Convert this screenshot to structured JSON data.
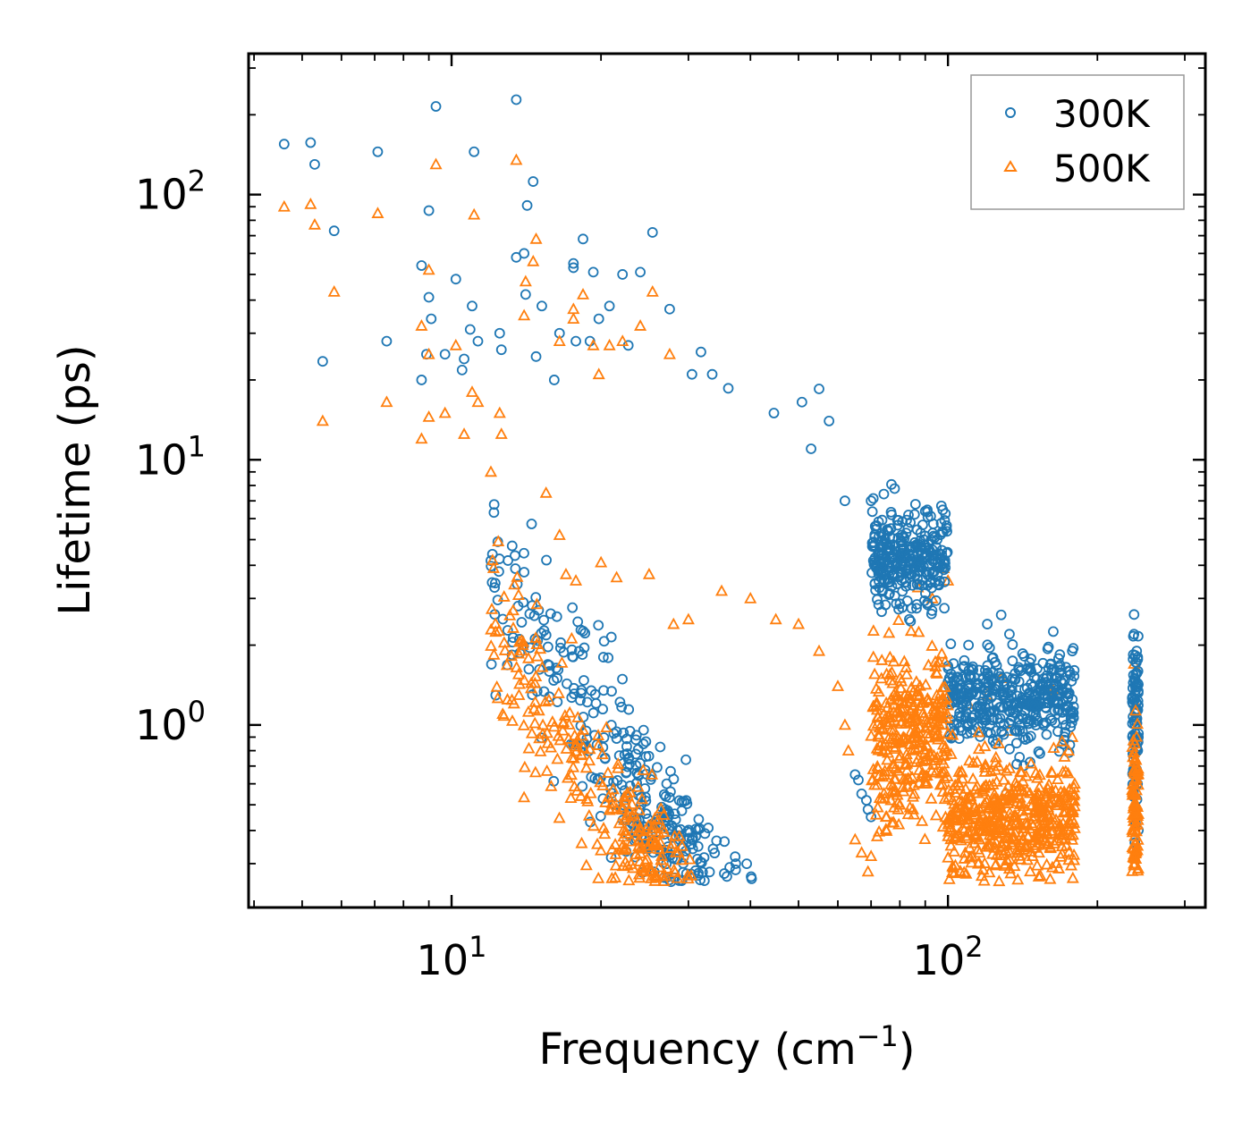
{
  "chart_data": {
    "type": "scatter",
    "xlabel": "Frequency (cm",
    "xlabel_sup": "−1",
    "xlabel_end": ")",
    "ylabel": "Lifetime (ps)",
    "xscale": "log",
    "yscale": "log",
    "xlim": [
      3.9,
      330
    ],
    "ylim": [
      0.205,
      340
    ],
    "x_ticks": [
      {
        "base": "10",
        "exp": "1",
        "value": 10
      },
      {
        "base": "10",
        "exp": "2",
        "value": 100
      }
    ],
    "y_ticks": [
      {
        "base": "10",
        "exp": "0",
        "value": 1
      },
      {
        "base": "10",
        "exp": "1",
        "value": 10
      },
      {
        "base": "10",
        "exp": "2",
        "value": 100
      }
    ],
    "legend_position": "top-right",
    "series": [
      {
        "name": "300K",
        "marker": "circle",
        "color": "#1f77b4",
        "points": [
          [
            4.6,
            155
          ],
          [
            5.2,
            157
          ],
          [
            5.3,
            130
          ],
          [
            5.8,
            73
          ],
          [
            5.5,
            23.5
          ],
          [
            7.1,
            145
          ],
          [
            7.4,
            28
          ],
          [
            8.7,
            54
          ],
          [
            9.0,
            87
          ],
          [
            9.3,
            215
          ],
          [
            9.0,
            41
          ],
          [
            9.1,
            34
          ],
          [
            8.9,
            25
          ],
          [
            9.7,
            25
          ],
          [
            10.2,
            48
          ],
          [
            10.5,
            21.8
          ],
          [
            11.1,
            145
          ],
          [
            11.0,
            38
          ],
          [
            10.9,
            31
          ],
          [
            11.3,
            28
          ],
          [
            8.7,
            20
          ],
          [
            10.6,
            24
          ],
          [
            13.5,
            228
          ],
          [
            13.5,
            58
          ],
          [
            14.2,
            91
          ],
          [
            14.6,
            112
          ],
          [
            14.0,
            60
          ],
          [
            12.5,
            30
          ],
          [
            12.6,
            26
          ],
          [
            14.1,
            42
          ],
          [
            14.8,
            24.5
          ],
          [
            15.2,
            38
          ],
          [
            16.5,
            30
          ],
          [
            17.6,
            55
          ],
          [
            17.6,
            53
          ],
          [
            18.4,
            68
          ],
          [
            19.3,
            51
          ],
          [
            19.8,
            34
          ],
          [
            20.8,
            38
          ],
          [
            22.1,
            50
          ],
          [
            24.0,
            51
          ],
          [
            25.4,
            72
          ],
          [
            27.5,
            37
          ],
          [
            16.1,
            20
          ],
          [
            17.8,
            28
          ],
          [
            19.0,
            28
          ],
          [
            22.7,
            27
          ],
          [
            31.8,
            25.5
          ],
          [
            30.5,
            21
          ],
          [
            33.5,
            21
          ],
          [
            36.1,
            18.6
          ],
          [
            44.6,
            15
          ],
          [
            50.8,
            16.5
          ],
          [
            55.0,
            18.5
          ],
          [
            57.6,
            14
          ],
          [
            53.0,
            11
          ],
          [
            62.0,
            7
          ],
          [
            70.0,
            7
          ],
          [
            77.0,
            6.2
          ],
          [
            84.0,
            5.8
          ],
          [
            90.0,
            6.4
          ],
          [
            97.0,
            6.7
          ],
          [
            65.0,
            0.65
          ],
          [
            67.0,
            0.55
          ],
          [
            69.0,
            0.48
          ],
          [
            70.0,
            0.45
          ],
          [
            68.5,
            0.52
          ],
          [
            66.0,
            0.62
          ],
          [
            110.0,
            2.0
          ],
          [
            120.0,
            2.4
          ],
          [
            128.0,
            2.6
          ],
          [
            133.0,
            2.2
          ],
          [
            140.0,
            1.6
          ],
          [
            163.0,
            2.25
          ],
          [
            178.0,
            1.9
          ],
          [
            175.0,
            1.6
          ],
          [
            118.0,
            1.1
          ],
          [
            150.0,
            1.3
          ],
          [
            237.0,
            2.2
          ],
          [
            240.0,
            1.9
          ],
          [
            238.0,
            1.5
          ],
          [
            236.0,
            1.2
          ],
          [
            239.0,
            0.9
          ],
          [
            241.0,
            0.6
          ],
          [
            238.0,
            0.36
          ],
          [
            240.0,
            0.45
          ],
          [
            131.0,
            0.55
          ],
          [
            158.0,
            0.92
          ],
          [
            103.0,
            0.95
          ]
        ]
      },
      {
        "name": "500K",
        "marker": "triangle",
        "color": "#ff7f0e",
        "points": [
          [
            4.6,
            90
          ],
          [
            5.2,
            92
          ],
          [
            5.3,
            77
          ],
          [
            5.8,
            43
          ],
          [
            5.5,
            14
          ],
          [
            7.1,
            85
          ],
          [
            7.4,
            16.5
          ],
          [
            9.3,
            130
          ],
          [
            9.0,
            52
          ],
          [
            9.0,
            25
          ],
          [
            8.7,
            32
          ],
          [
            8.7,
            12
          ],
          [
            9.7,
            15
          ],
          [
            10.2,
            27
          ],
          [
            9.0,
            14.5
          ],
          [
            11.1,
            84
          ],
          [
            11.0,
            18
          ],
          [
            10.6,
            12.5
          ],
          [
            11.3,
            16.5
          ],
          [
            13.5,
            135
          ],
          [
            14.6,
            56
          ],
          [
            14.8,
            68
          ],
          [
            14.0,
            35
          ],
          [
            14.1,
            47
          ],
          [
            12.5,
            15
          ],
          [
            12.6,
            12.5
          ],
          [
            12.0,
            9
          ],
          [
            16.5,
            28
          ],
          [
            17.6,
            37
          ],
          [
            17.6,
            34
          ],
          [
            18.4,
            42
          ],
          [
            19.3,
            27
          ],
          [
            19.8,
            21
          ],
          [
            20.8,
            27
          ],
          [
            22.1,
            28
          ],
          [
            24.0,
            32
          ],
          [
            25.4,
            43
          ],
          [
            27.5,
            25
          ],
          [
            15.5,
            7.5
          ],
          [
            16.5,
            5.2
          ],
          [
            17.0,
            3.7
          ],
          [
            17.8,
            3.5
          ],
          [
            20.0,
            4.1
          ],
          [
            21.5,
            3.6
          ],
          [
            25.0,
            3.7
          ],
          [
            28.0,
            2.4
          ],
          [
            30.0,
            2.5
          ],
          [
            35.0,
            3.2
          ],
          [
            40.0,
            3.0
          ],
          [
            45.0,
            2.5
          ],
          [
            50.0,
            2.4
          ],
          [
            55.0,
            1.9
          ],
          [
            60.0,
            1.4
          ],
          [
            62.0,
            1.0
          ],
          [
            63.0,
            0.8
          ],
          [
            65.0,
            0.37
          ],
          [
            67.0,
            0.33
          ],
          [
            69.0,
            0.28
          ],
          [
            70.0,
            0.32
          ],
          [
            72.0,
            0.38
          ],
          [
            75.0,
            0.45
          ],
          [
            80.0,
            0.5
          ],
          [
            85.0,
            0.48
          ],
          [
            90.0,
            0.6
          ],
          [
            95.0,
            1.2
          ],
          [
            100.0,
            3.5
          ],
          [
            98.0,
            3.9
          ],
          [
            93.0,
            3.0
          ],
          [
            87.0,
            3.3
          ],
          [
            110.0,
            1.2
          ],
          [
            120.0,
            1.3
          ],
          [
            128.0,
            1.5
          ],
          [
            133.0,
            0.95
          ],
          [
            138.0,
            0.33
          ],
          [
            148.0,
            0.32
          ],
          [
            158.0,
            0.55
          ],
          [
            163.0,
            1.35
          ],
          [
            178.0,
            0.9
          ],
          [
            180.0,
            0.6
          ],
          [
            237.0,
            1.7
          ],
          [
            239.0,
            1.2
          ],
          [
            238.0,
            0.8
          ],
          [
            240.0,
            0.5
          ],
          [
            237.0,
            0.3
          ],
          [
            241.0,
            0.35
          ]
        ]
      }
    ]
  },
  "colors": {
    "series_300K": "#1f77b4",
    "series_500K": "#ff7f0e"
  }
}
